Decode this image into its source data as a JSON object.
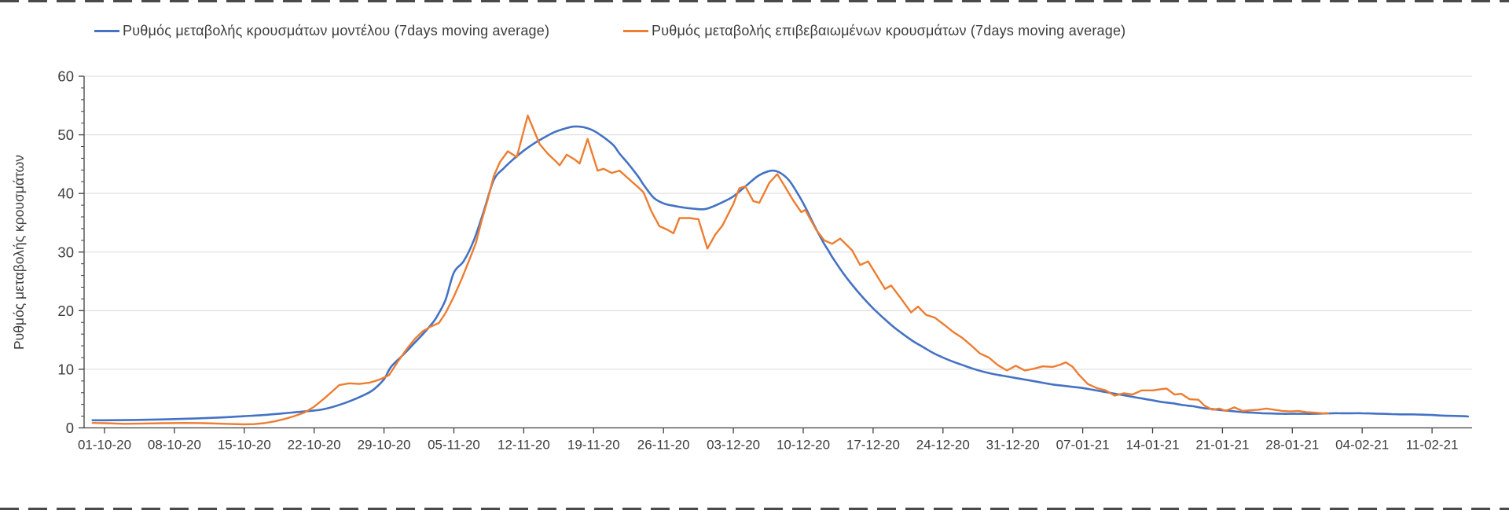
{
  "page": {
    "background": "#ffffff",
    "frame_dash_color": "#4a4a4a"
  },
  "chart_data": {
    "type": "line",
    "title": "",
    "ylabel": "Ρυθμός μεταβολής κρουσμάτων",
    "xlabel": "",
    "ylim": [
      0,
      60
    ],
    "yticks": [
      0,
      10,
      20,
      30,
      40,
      50,
      60
    ],
    "y_minor_step": 2,
    "grid": "horizontal",
    "gridline_color": "#d9d9d9",
    "axis_color": "#404040",
    "text_color": "#3d3d3d",
    "legend_position": "top",
    "x_unit": "days since 01-10-20, ticks every 7 days",
    "days_per_tick": 7,
    "x_tick_labels": [
      "01-10-20",
      "08-10-20",
      "15-10-20",
      "22-10-20",
      "29-10-20",
      "05-11-20",
      "12-11-20",
      "19-11-20",
      "26-11-20",
      "03-12-20",
      "10-12-20",
      "17-12-20",
      "24-12-20",
      "31-12-20",
      "07-01-21",
      "14-01-21",
      "21-01-21",
      "28-01-21",
      "04-02-21",
      "11-02-21"
    ],
    "series": [
      {
        "name": "Ρυθμός μεταβολής κρουσμάτων μοντέλου (7days moving average)",
        "color": "#4472C4",
        "style": "smooth",
        "stroke_width": 2.6,
        "points": [
          [
            -1.2,
            1.3
          ],
          [
            0,
            1.3
          ],
          [
            3,
            1.35
          ],
          [
            6,
            1.45
          ],
          [
            9,
            1.6
          ],
          [
            12,
            1.8
          ],
          [
            14,
            2.0
          ],
          [
            16,
            2.2
          ],
          [
            18,
            2.5
          ],
          [
            20,
            2.8
          ],
          [
            22,
            3.2
          ],
          [
            24,
            4.2
          ],
          [
            26,
            5.6
          ],
          [
            27,
            6.6
          ],
          [
            28,
            8.3
          ],
          [
            28.7,
            10.4
          ],
          [
            30,
            12.6
          ],
          [
            31,
            14.4
          ],
          [
            32,
            16.2
          ],
          [
            33,
            18.2
          ],
          [
            33.5,
            19.6
          ],
          [
            34.2,
            22.0
          ],
          [
            35,
            26.5
          ],
          [
            36,
            28.5
          ],
          [
            37,
            32.0
          ],
          [
            38,
            37.0
          ],
          [
            39,
            42.3
          ],
          [
            40,
            44.3
          ],
          [
            41,
            45.9
          ],
          [
            42,
            47.3
          ],
          [
            43,
            48.5
          ],
          [
            44,
            49.5
          ],
          [
            45,
            50.4
          ],
          [
            46,
            51.0
          ],
          [
            47,
            51.4
          ],
          [
            48,
            51.3
          ],
          [
            49,
            50.7
          ],
          [
            50,
            49.6
          ],
          [
            51,
            48.2
          ],
          [
            51.6,
            46.8
          ],
          [
            52.5,
            45.0
          ],
          [
            53.5,
            42.8
          ],
          [
            54,
            41.5
          ],
          [
            55,
            39.3
          ],
          [
            56,
            38.3
          ],
          [
            57,
            37.9
          ],
          [
            58,
            37.6
          ],
          [
            59,
            37.4
          ],
          [
            60,
            37.3
          ],
          [
            60.7,
            37.6
          ],
          [
            61.9,
            38.5
          ],
          [
            63,
            39.5
          ],
          [
            64.2,
            41.2
          ],
          [
            65.4,
            42.9
          ],
          [
            66.2,
            43.6
          ],
          [
            67,
            43.9
          ],
          [
            67.8,
            43.4
          ],
          [
            68.6,
            42.2
          ],
          [
            69.4,
            40.1
          ],
          [
            70.2,
            37.7
          ],
          [
            71,
            34.9
          ],
          [
            72,
            31.7
          ],
          [
            72.5,
            30.3
          ],
          [
            73,
            28.9
          ],
          [
            74,
            26.4
          ],
          [
            75,
            24.2
          ],
          [
            76,
            22.2
          ],
          [
            77,
            20.4
          ],
          [
            78,
            18.8
          ],
          [
            79,
            17.3
          ],
          [
            80,
            16.0
          ],
          [
            81,
            14.8
          ],
          [
            82,
            13.8
          ],
          [
            83,
            12.8
          ],
          [
            84,
            12.0
          ],
          [
            85,
            11.3
          ],
          [
            86,
            10.7
          ],
          [
            87,
            10.1
          ],
          [
            88,
            9.6
          ],
          [
            89,
            9.2
          ],
          [
            90,
            8.9
          ],
          [
            91,
            8.6
          ],
          [
            92,
            8.3
          ],
          [
            93,
            8.0
          ],
          [
            94,
            7.7
          ],
          [
            95,
            7.4
          ],
          [
            96,
            7.2
          ],
          [
            97,
            7.0
          ],
          [
            98,
            6.8
          ],
          [
            99,
            6.5
          ],
          [
            100,
            6.2
          ],
          [
            101,
            5.9
          ],
          [
            102,
            5.6
          ],
          [
            103,
            5.3
          ],
          [
            104,
            5.0
          ],
          [
            105,
            4.7
          ],
          [
            106,
            4.4
          ],
          [
            107,
            4.2
          ],
          [
            108,
            3.9
          ],
          [
            109,
            3.7
          ],
          [
            110,
            3.4
          ],
          [
            111,
            3.2
          ],
          [
            112,
            3.0
          ],
          [
            113,
            2.85
          ],
          [
            114,
            2.7
          ],
          [
            115,
            2.6
          ],
          [
            116,
            2.5
          ],
          [
            117,
            2.45
          ],
          [
            118,
            2.4
          ],
          [
            119,
            2.4
          ],
          [
            120,
            2.4
          ],
          [
            121,
            2.4
          ],
          [
            122,
            2.45
          ],
          [
            123,
            2.5
          ],
          [
            124,
            2.5
          ],
          [
            125,
            2.5
          ],
          [
            126,
            2.5
          ],
          [
            127,
            2.45
          ],
          [
            128,
            2.4
          ],
          [
            129,
            2.35
          ],
          [
            130,
            2.3
          ],
          [
            131,
            2.3
          ],
          [
            132,
            2.25
          ],
          [
            133,
            2.2
          ],
          [
            134,
            2.1
          ],
          [
            135,
            2.05
          ],
          [
            136,
            2.0
          ],
          [
            136.6,
            1.95
          ]
        ]
      },
      {
        "name": "Ρυθμός μεταβολής επιβεβαιωμένων κρουσμάτων (7days moving average)",
        "color": "#ED7D31",
        "style": "straight",
        "stroke_width": 2.4,
        "points": [
          [
            -1.2,
            0.85
          ],
          [
            0,
            0.8
          ],
          [
            2,
            0.7
          ],
          [
            4,
            0.75
          ],
          [
            6,
            0.8
          ],
          [
            8,
            0.85
          ],
          [
            10,
            0.8
          ],
          [
            12,
            0.7
          ],
          [
            14,
            0.6
          ],
          [
            15,
            0.65
          ],
          [
            16,
            0.8
          ],
          [
            17,
            1.1
          ],
          [
            18,
            1.5
          ],
          [
            19,
            2.0
          ],
          [
            20,
            2.6
          ],
          [
            21,
            3.6
          ],
          [
            22,
            5.0
          ],
          [
            23,
            6.5
          ],
          [
            23.5,
            7.3
          ],
          [
            24.5,
            7.6
          ],
          [
            25.5,
            7.5
          ],
          [
            26.5,
            7.7
          ],
          [
            27.5,
            8.2
          ],
          [
            28.5,
            9.0
          ],
          [
            29.5,
            11.6
          ],
          [
            30.3,
            13.5
          ],
          [
            31.1,
            15.2
          ],
          [
            31.9,
            16.5
          ],
          [
            32.7,
            17.3
          ],
          [
            33.5,
            17.9
          ],
          [
            34.2,
            19.7
          ],
          [
            35,
            22.4
          ],
          [
            35.8,
            25.5
          ],
          [
            36.6,
            28.9
          ],
          [
            37.2,
            31.5
          ],
          [
            37.8,
            35.5
          ],
          [
            38.4,
            39.0
          ],
          [
            39,
            43.0
          ],
          [
            39.6,
            45.3
          ],
          [
            40.4,
            47.2
          ],
          [
            41.3,
            46.2
          ],
          [
            42.4,
            53.3
          ],
          [
            43.6,
            48.4
          ],
          [
            44.4,
            46.8
          ],
          [
            45.2,
            45.5
          ],
          [
            45.6,
            44.8
          ],
          [
            46.3,
            46.6
          ],
          [
            47.1,
            45.8
          ],
          [
            47.6,
            45.1
          ],
          [
            48.4,
            49.3
          ],
          [
            49.4,
            43.9
          ],
          [
            50,
            44.2
          ],
          [
            50.8,
            43.5
          ],
          [
            51.6,
            43.9
          ],
          [
            52.5,
            42.5
          ],
          [
            53.5,
            41.0
          ],
          [
            54,
            40.2
          ],
          [
            54.8,
            36.9
          ],
          [
            55.6,
            34.4
          ],
          [
            56.4,
            33.8
          ],
          [
            57,
            33.2
          ],
          [
            57.6,
            35.8
          ],
          [
            58.6,
            35.8
          ],
          [
            59.5,
            35.6
          ],
          [
            60.4,
            30.6
          ],
          [
            61.2,
            33.0
          ],
          [
            61.9,
            34.5
          ],
          [
            63,
            38.2
          ],
          [
            63.6,
            40.9
          ],
          [
            64.2,
            41.2
          ],
          [
            65,
            38.7
          ],
          [
            65.6,
            38.4
          ],
          [
            66.6,
            41.8
          ],
          [
            67.4,
            43.3
          ],
          [
            68.2,
            41.1
          ],
          [
            69,
            38.8
          ],
          [
            69.8,
            36.8
          ],
          [
            70.2,
            37.2
          ],
          [
            71.3,
            33.8
          ],
          [
            72.1,
            32.0
          ],
          [
            72.9,
            31.4
          ],
          [
            73.7,
            32.3
          ],
          [
            74.9,
            30.3
          ],
          [
            75.7,
            27.8
          ],
          [
            76.5,
            28.4
          ],
          [
            77.3,
            26.2
          ],
          [
            78.2,
            23.7
          ],
          [
            78.8,
            24.3
          ],
          [
            79.7,
            22.3
          ],
          [
            80.8,
            19.7
          ],
          [
            81.5,
            20.7
          ],
          [
            82.3,
            19.3
          ],
          [
            83.2,
            18.8
          ],
          [
            84.2,
            17.5
          ],
          [
            85,
            16.4
          ],
          [
            85.9,
            15.4
          ],
          [
            86.8,
            14.1
          ],
          [
            87.7,
            12.7
          ],
          [
            88.6,
            12.0
          ],
          [
            89.5,
            10.7
          ],
          [
            90.4,
            9.8
          ],
          [
            91.3,
            10.6
          ],
          [
            92.2,
            9.8
          ],
          [
            93.1,
            10.1
          ],
          [
            94,
            10.5
          ],
          [
            95,
            10.4
          ],
          [
            95.8,
            10.8
          ],
          [
            96.3,
            11.2
          ],
          [
            97,
            10.4
          ],
          [
            97.6,
            9.1
          ],
          [
            98.5,
            7.5
          ],
          [
            99.4,
            6.8
          ],
          [
            100.3,
            6.4
          ],
          [
            101.2,
            5.5
          ],
          [
            102.1,
            5.9
          ],
          [
            103,
            5.7
          ],
          [
            103.9,
            6.4
          ],
          [
            105,
            6.4
          ],
          [
            105.8,
            6.6
          ],
          [
            106.4,
            6.7
          ],
          [
            107.2,
            5.7
          ],
          [
            107.9,
            5.8
          ],
          [
            108.7,
            4.9
          ],
          [
            109.6,
            4.8
          ],
          [
            110.2,
            3.8
          ],
          [
            111,
            3.1
          ],
          [
            111.7,
            3.3
          ],
          [
            112.3,
            2.9
          ],
          [
            113.2,
            3.5
          ],
          [
            114,
            2.9
          ],
          [
            114.8,
            3.0
          ],
          [
            115.6,
            3.1
          ],
          [
            116.4,
            3.3
          ],
          [
            117.2,
            3.1
          ],
          [
            118,
            2.9
          ],
          [
            118.8,
            2.8
          ],
          [
            119.6,
            2.9
          ],
          [
            120.4,
            2.7
          ],
          [
            121.2,
            2.6
          ],
          [
            122,
            2.5
          ],
          [
            122.6,
            2.45
          ]
        ]
      }
    ]
  }
}
